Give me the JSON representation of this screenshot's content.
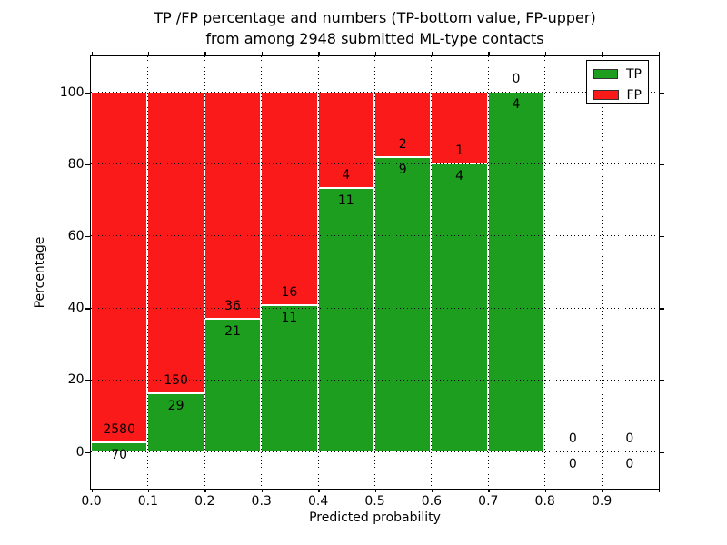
{
  "title": {
    "line1": "TP /FP percentage and numbers (TP-bottom value, FP-upper)",
    "line2": "from among 2948 submitted ML-type contacts"
  },
  "axes": {
    "xlabel": "Predicted probability",
    "ylabel": "Percentage",
    "x_tick_labels": [
      "0.0",
      "0.1",
      "0.2",
      "0.3",
      "0.4",
      "0.5",
      "0.6",
      "0.7",
      "0.8",
      "0.9"
    ],
    "y_tick_labels": [
      "0",
      "20",
      "40",
      "60",
      "80",
      "100"
    ],
    "y_tick_values": [
      0,
      20,
      40,
      60,
      80,
      100
    ]
  },
  "legend": {
    "items": [
      {
        "label": "TP",
        "color": "#1e9e1e"
      },
      {
        "label": "FP",
        "color": "#fa1a1a"
      }
    ]
  },
  "colors": {
    "tp": "#1e9e1e",
    "fp": "#fa1a1a",
    "bar_edge": "#ffffff",
    "grid": "#000000",
    "background": "#ffffff",
    "text": "#000000"
  },
  "chart_data": {
    "type": "bar",
    "stacked": true,
    "title": "TP /FP percentage and numbers (TP-bottom value, FP-upper) from among 2948 submitted ML-type contacts",
    "xlabel": "Predicted probability",
    "ylabel": "Percentage",
    "xlim": [
      0.0,
      1.0
    ],
    "ylim": [
      -10,
      110
    ],
    "grid": true,
    "legend_position": "upper right",
    "total_contacts": 2948,
    "bin_width": 0.1,
    "series": [
      {
        "name": "TP",
        "color": "#1e9e1e"
      },
      {
        "name": "FP",
        "color": "#fa1a1a"
      }
    ],
    "bins": [
      {
        "x_start": 0.0,
        "x_end": 0.1,
        "tp": 70,
        "fp": 2580,
        "tp_pct": 2.64,
        "fp_pct": 97.36
      },
      {
        "x_start": 0.1,
        "x_end": 0.2,
        "tp": 29,
        "fp": 150,
        "tp_pct": 16.2,
        "fp_pct": 83.8
      },
      {
        "x_start": 0.2,
        "x_end": 0.3,
        "tp": 21,
        "fp": 36,
        "tp_pct": 36.84,
        "fp_pct": 63.16
      },
      {
        "x_start": 0.3,
        "x_end": 0.4,
        "tp": 11,
        "fp": 16,
        "tp_pct": 40.74,
        "fp_pct": 59.26
      },
      {
        "x_start": 0.4,
        "x_end": 0.5,
        "tp": 11,
        "fp": 4,
        "tp_pct": 73.33,
        "fp_pct": 26.67
      },
      {
        "x_start": 0.5,
        "x_end": 0.6,
        "tp": 9,
        "fp": 2,
        "tp_pct": 81.82,
        "fp_pct": 18.18
      },
      {
        "x_start": 0.6,
        "x_end": 0.7,
        "tp": 4,
        "fp": 1,
        "tp_pct": 80.0,
        "fp_pct": 20.0
      },
      {
        "x_start": 0.7,
        "x_end": 0.8,
        "tp": 4,
        "fp": 0,
        "tp_pct": 100.0,
        "fp_pct": 0.0
      },
      {
        "x_start": 0.8,
        "x_end": 0.9,
        "tp": 0,
        "fp": 0,
        "tp_pct": 0.0,
        "fp_pct": 0.0
      },
      {
        "x_start": 0.9,
        "x_end": 1.0,
        "tp": 0,
        "fp": 0,
        "tp_pct": 0.0,
        "fp_pct": 0.0
      }
    ]
  }
}
